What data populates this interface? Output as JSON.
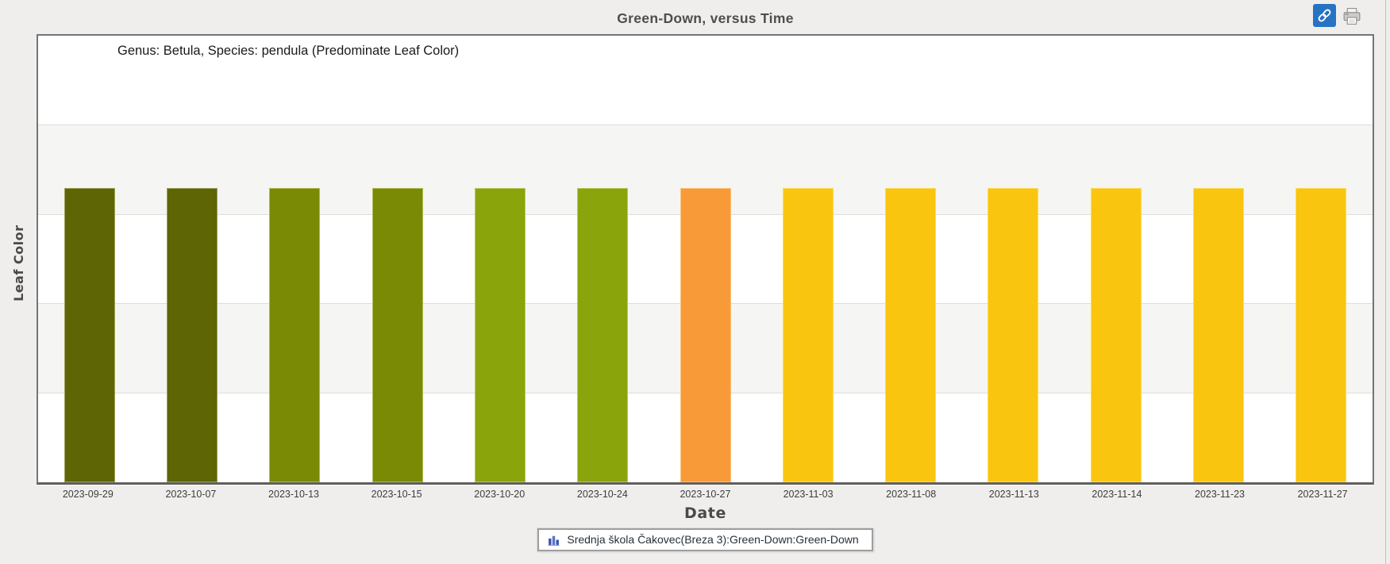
{
  "page": {
    "background": "#efeeec",
    "toolbar": {
      "link_button_color": "#2673c4",
      "icons": [
        "link-icon",
        "printer-icon"
      ]
    }
  },
  "chart_data": {
    "type": "bar",
    "title": "Green-Down, versus Time",
    "annotation": "Genus: Betula, Species: pendula (Predominate Leaf Color)",
    "xlabel": "Date",
    "ylabel": "Leaf Color",
    "categories": [
      "2023-09-29",
      "2023-10-07",
      "2023-10-13",
      "2023-10-15",
      "2023-10-20",
      "2023-10-24",
      "2023-10-27",
      "2023-11-03",
      "2023-11-08",
      "2023-11-13",
      "2023-11-14",
      "2023-11-23",
      "2023-11-27"
    ],
    "series": [
      {
        "name": "Srednja škola Čakovec(Breza 3):Green-Down:Green-Down",
        "uniform_bar_height": true,
        "point_colors": [
          "#5e6505",
          "#5e6505",
          "#7a8a04",
          "#7a8a04",
          "#8aa40b",
          "#8aa40b",
          "#f99a38",
          "#fac50e",
          "#fac50e",
          "#fac50e",
          "#fac50e",
          "#fac50e",
          "#fac50e"
        ],
        "point_color_names": [
          "dark-olive",
          "dark-olive",
          "olive",
          "olive",
          "yellow-green",
          "yellow-green",
          "orange",
          "gold",
          "gold",
          "gold",
          "gold",
          "gold",
          "gold"
        ]
      }
    ],
    "legend": {
      "position": "bottom-center",
      "entries": [
        {
          "icon": "bar-chart-icon",
          "label": "Srednja škola Čakovec(Breza 3):Green-Down:Green-Down"
        }
      ]
    },
    "grid": {
      "orientation": "horizontal",
      "bands": 5,
      "band_colors": [
        "#ffffff",
        "#f5f5f3"
      ]
    },
    "y_axis": {
      "tick_labels_visible": false
    }
  },
  "colors": {
    "band_gray": "#f5f5f3",
    "gridline": "#deddd9",
    "chart_border": "#757575",
    "axis_line": "#5f5f5f",
    "title_text": "#4e4e4e",
    "tick_text": "#3d3d3d",
    "legend_border": "#9e9e9e",
    "legend_icon_blue": "#3b55b0"
  }
}
